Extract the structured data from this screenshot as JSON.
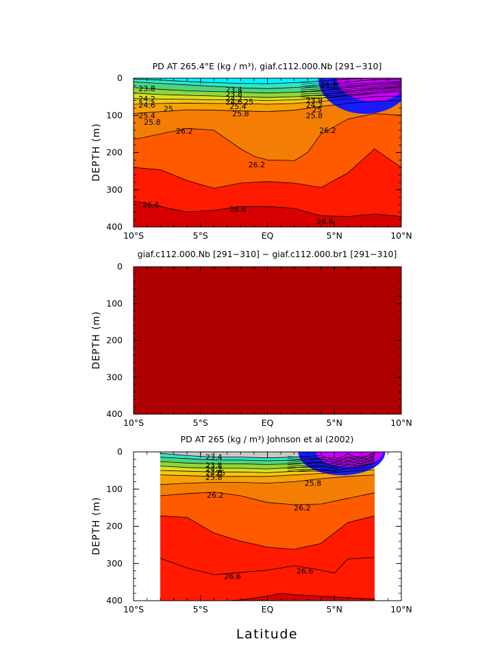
{
  "figure": {
    "xlabel": "Latitude"
  },
  "chart_data": [
    {
      "type": "contour",
      "title": "PD AT 265.4°E (kg / m³), giaf.c112.000.Nb [291−310]",
      "ylabel": "DEPTH (m)",
      "xlim": [
        -10,
        10
      ],
      "ylim": [
        400,
        0
      ],
      "x_ticks": [
        "10°S",
        "5°S",
        "EQ",
        "5°N",
        "10°N"
      ],
      "y_ticks": [
        "0",
        "100",
        "200",
        "300",
        "400"
      ],
      "data_extent": [
        -10,
        10
      ],
      "top_color": "cyan",
      "contour_levels": [
        23.0,
        23.4,
        23.8,
        24.2,
        24.6,
        25.0,
        25.4,
        25.8,
        26.2,
        26.6
      ],
      "isopycnals": [
        {
          "level": 23.4,
          "x": [
            -10,
            -8,
            -6,
            -4,
            -2,
            0,
            2,
            4,
            6,
            8,
            10
          ],
          "depth": [
            2,
            5,
            9,
            12,
            14,
            15,
            12,
            8,
            2,
            0,
            0
          ]
        },
        {
          "level": 23.8,
          "x": [
            -10,
            -8,
            -6,
            -4,
            -2,
            0,
            2,
            4,
            6,
            8,
            10
          ],
          "depth": [
            10,
            14,
            18,
            22,
            26,
            28,
            25,
            20,
            10,
            4,
            2
          ]
        },
        {
          "level": 24.2,
          "x": [
            -10,
            -8,
            -6,
            -4,
            -2,
            0,
            2,
            4,
            6,
            8,
            10
          ],
          "depth": [
            25,
            30,
            34,
            36,
            38,
            40,
            38,
            34,
            24,
            16,
            12
          ]
        },
        {
          "level": 24.6,
          "x": [
            -10,
            -8,
            -6,
            -4,
            -2,
            0,
            2,
            4,
            6,
            8,
            10
          ],
          "depth": [
            40,
            44,
            46,
            48,
            50,
            52,
            50,
            46,
            36,
            28,
            24
          ]
        },
        {
          "level": 25.0,
          "x": [
            -10,
            -8,
            -6,
            -4,
            -2,
            0,
            2,
            4,
            6,
            8,
            10
          ],
          "depth": [
            55,
            56,
            57,
            58,
            58,
            60,
            58,
            54,
            46,
            40,
            36
          ]
        },
        {
          "level": 25.4,
          "x": [
            -10,
            -8,
            -6,
            -4,
            -2,
            0,
            2,
            4,
            6,
            8,
            10
          ],
          "depth": [
            70,
            68,
            67,
            68,
            68,
            70,
            68,
            62,
            56,
            50,
            48
          ]
        },
        {
          "level": 25.8,
          "x": [
            -10,
            -8,
            -6,
            -4,
            -2,
            0,
            2,
            4,
            6,
            8,
            10
          ],
          "depth": [
            95,
            90,
            85,
            86,
            88,
            90,
            86,
            76,
            68,
            62,
            60
          ]
        },
        {
          "level": 26.2,
          "x": [
            -10,
            -8,
            -6,
            -4,
            -2,
            -1,
            0,
            1,
            2,
            3,
            4,
            6,
            8,
            10
          ],
          "depth": [
            165,
            150,
            135,
            140,
            190,
            210,
            220,
            220,
            222,
            200,
            150,
            110,
            95,
            100
          ]
        },
        {
          "level": 26.6,
          "x": [
            -10,
            -8,
            -6,
            -4,
            -2,
            0,
            2,
            4,
            6,
            8,
            10
          ],
          "depth": [
            240,
            246,
            275,
            296,
            282,
            278,
            282,
            294,
            255,
            190,
            240
          ]
        },
        {
          "level": 26.6,
          "x": [
            -10,
            -8,
            -6,
            -4,
            -2,
            0,
            2,
            4,
            6,
            8,
            10
          ],
          "depth": [
            330,
            345,
            360,
            355,
            345,
            345,
            350,
            370,
            372,
            365,
            372
          ]
        }
      ],
      "labels": [
        {
          "text": "23.8",
          "x": -9.0,
          "depth": 28
        },
        {
          "text": "24.2",
          "x": -9.0,
          "depth": 55
        },
        {
          "text": "24.6",
          "x": -9.0,
          "depth": 72
        },
        {
          "text": "25",
          "x": -7.4,
          "depth": 82
        },
        {
          "text": "25.4",
          "x": -9.0,
          "depth": 100
        },
        {
          "text": "25.8",
          "x": -8.6,
          "depth": 118
        },
        {
          "text": "26.2",
          "x": -6.2,
          "depth": 142
        },
        {
          "text": "26.6",
          "x": -8.7,
          "depth": 340
        },
        {
          "text": "23.4",
          "x": -2.5,
          "depth": 30
        },
        {
          "text": "23.8",
          "x": -2.5,
          "depth": 42
        },
        {
          "text": "24.2",
          "x": -2.5,
          "depth": 54
        },
        {
          "text": "24.6",
          "x": -2.5,
          "depth": 64
        },
        {
          "text": "25",
          "x": -1.4,
          "depth": 64
        },
        {
          "text": "25.4",
          "x": -2.2,
          "depth": 76
        },
        {
          "text": "25.8",
          "x": -2.0,
          "depth": 95
        },
        {
          "text": "26.2",
          "x": -0.8,
          "depth": 232
        },
        {
          "text": "26.6",
          "x": -2.2,
          "depth": 352
        },
        {
          "text": "23.8",
          "x": 3.5,
          "depth": 60
        },
        {
          "text": "24.2",
          "x": 3.5,
          "depth": 72
        },
        {
          "text": "25",
          "x": 3.7,
          "depth": 84
        },
        {
          "text": "25.8",
          "x": 3.5,
          "depth": 100
        },
        {
          "text": "26.2",
          "x": 4.5,
          "depth": 140
        },
        {
          "text": "26.6",
          "x": 4.3,
          "depth": 385
        },
        {
          "text": "21.8",
          "x": 4.6,
          "depth": 18
        }
      ]
    },
    {
      "type": "contour",
      "title": "giaf.c112.000.Nb [291−310] − giaf.c112.000.br1 [291−310]",
      "ylabel": "DEPTH (m)",
      "xlim": [
        -10,
        10
      ],
      "ylim": [
        400,
        0
      ],
      "x_ticks": [
        "10°S",
        "5°S",
        "EQ",
        "5°N",
        "10°N"
      ],
      "y_ticks": [
        "0",
        "100",
        "200",
        "300",
        "400"
      ],
      "data_extent": [
        -10,
        10
      ],
      "difference": 0,
      "fill_color": "#af0000",
      "contour_levels": [],
      "isopycnals": [],
      "labels": []
    },
    {
      "type": "contour",
      "title": "PD AT 265 (kg / m³) Johnson et al (2002)",
      "ylabel": "DEPTH (m)",
      "xlim": [
        -10,
        10
      ],
      "ylim": [
        400,
        0
      ],
      "x_ticks": [
        "10°S",
        "5°S",
        "EQ",
        "5°N",
        "10°N"
      ],
      "y_ticks": [
        "0",
        "100",
        "200",
        "300",
        "400"
      ],
      "data_extent": [
        -8,
        8
      ],
      "top_color": "gray",
      "contour_levels": [
        23.0,
        23.4,
        23.8,
        24.2,
        24.6,
        25.0,
        25.4,
        25.8,
        26.2,
        26.6
      ],
      "isopycnals": [
        {
          "level": 23.4,
          "x": [
            -8,
            -6,
            -4,
            -2,
            0,
            2,
            4,
            5,
            6,
            7,
            8
          ],
          "depth": [
            4,
            10,
            14,
            14,
            16,
            14,
            10,
            22,
            6,
            18,
            2
          ]
        },
        {
          "level": 23.8,
          "x": [
            -8,
            -6,
            -4,
            -2,
            0,
            2,
            4,
            5,
            6,
            7,
            8
          ],
          "depth": [
            14,
            18,
            22,
            22,
            24,
            22,
            18,
            30,
            14,
            26,
            10
          ]
        },
        {
          "level": 24.2,
          "x": [
            -8,
            -6,
            -4,
            -2,
            0,
            2,
            4,
            5,
            6,
            7,
            8
          ],
          "depth": [
            26,
            30,
            32,
            32,
            34,
            32,
            28,
            38,
            24,
            32,
            20
          ]
        },
        {
          "level": 24.6,
          "x": [
            -8,
            -6,
            -4,
            -2,
            0,
            2,
            4,
            5,
            6,
            7,
            8
          ],
          "depth": [
            38,
            42,
            44,
            44,
            46,
            42,
            38,
            44,
            34,
            38,
            30
          ]
        },
        {
          "level": 25.0,
          "x": [
            -8,
            -6,
            -4,
            -2,
            0,
            2,
            4,
            5,
            6,
            7,
            8
          ],
          "depth": [
            50,
            52,
            54,
            54,
            56,
            52,
            48,
            52,
            44,
            44,
            40
          ]
        },
        {
          "level": 25.4,
          "x": [
            -8,
            -6,
            -4,
            -2,
            0,
            2,
            4,
            6,
            8
          ],
          "depth": [
            62,
            64,
            66,
            66,
            66,
            62,
            58,
            52,
            48
          ]
        },
        {
          "level": 25.8,
          "x": [
            -8,
            -6,
            -4,
            -2,
            0,
            2,
            4,
            6,
            8
          ],
          "depth": [
            88,
            84,
            82,
            82,
            84,
            80,
            72,
            66,
            62
          ]
        },
        {
          "level": 26.2,
          "x": [
            -8,
            -6,
            -4,
            -2,
            0,
            2,
            4,
            6,
            8
          ],
          "depth": [
            118,
            112,
            108,
            118,
            136,
            142,
            140,
            125,
            110
          ]
        },
        {
          "level": 26.2,
          "x": [
            -8,
            -6,
            -4,
            -2,
            0,
            2,
            4,
            6,
            8
          ],
          "depth": [
            172,
            176,
            218,
            240,
            256,
            262,
            246,
            190,
            172
          ]
        },
        {
          "level": 26.6,
          "x": [
            -8,
            -6,
            -4,
            -2,
            0,
            2,
            4,
            5,
            6,
            8
          ],
          "depth": [
            286,
            312,
            330,
            324,
            318,
            306,
            318,
            326,
            288,
            284
          ]
        },
        {
          "level": 26.6,
          "x": [
            -3,
            -2,
            0,
            1,
            2,
            4,
            6,
            8
          ],
          "depth": [
            400,
            398,
            388,
            380,
            384,
            388,
            392,
            396
          ]
        }
      ],
      "labels": [
        {
          "text": "23.4",
          "x": -4.0,
          "depth": 14
        },
        {
          "text": "23.8",
          "x": -4.0,
          "depth": 36
        },
        {
          "text": "24.2",
          "x": -4.0,
          "depth": 46
        },
        {
          "text": "24.6",
          "x": -4.0,
          "depth": 56
        },
        {
          "text": "25",
          "x": -3.5,
          "depth": 56
        },
        {
          "text": "25.8",
          "x": -4.0,
          "depth": 68
        },
        {
          "text": "26.2",
          "x": -3.9,
          "depth": 116
        },
        {
          "text": "26.6",
          "x": -2.6,
          "depth": 335
        },
        {
          "text": "25.8",
          "x": 3.4,
          "depth": 84
        },
        {
          "text": "26.2",
          "x": 2.6,
          "depth": 150
        },
        {
          "text": "26.6",
          "x": 2.8,
          "depth": 320
        }
      ]
    }
  ]
}
